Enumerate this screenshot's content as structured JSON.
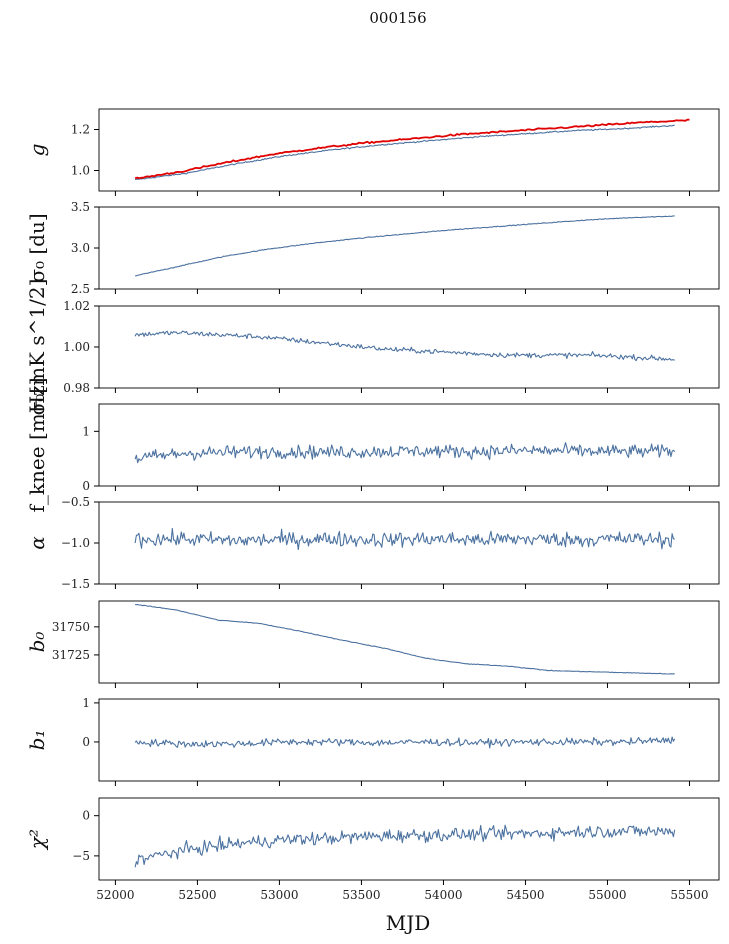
{
  "title": "000156",
  "chart_data": {
    "type": "line",
    "title": "000156",
    "xlabel": "MJD",
    "xlim": [
      51900,
      55680
    ],
    "xticks": [
      52000,
      52500,
      53000,
      53500,
      54000,
      54500,
      55000,
      55500
    ],
    "x_range": [
      52120,
      55410
    ],
    "colors": {
      "series": "#4c72a0",
      "overlay": "#e00000"
    },
    "panels": [
      {
        "ylabel": "g",
        "ylim": [
          0.9,
          1.3
        ],
        "yticks": [
          1.0,
          1.2
        ],
        "series": [
          {
            "kind": "trend",
            "values": [
              0.955,
              0.985,
              1.03,
              1.07,
              1.1,
              1.125,
              1.145,
              1.165,
              1.18,
              1.195,
              1.205,
              1.22
            ],
            "noise": 0.003
          },
          {
            "kind": "overlay",
            "values": [
              0.96,
              0.995,
              1.04,
              1.08,
              1.11,
              1.135,
              1.155,
              1.175,
              1.19,
              1.205,
              1.22,
              1.235,
              1.245
            ],
            "x_end": 55500,
            "noise": 0.004
          }
        ]
      },
      {
        "ylabel": "σ₀ [du]",
        "ylim": [
          2.5,
          3.5
        ],
        "yticks": [
          2.5,
          3.0,
          3.5
        ],
        "series": [
          {
            "kind": "trend",
            "values": [
              2.66,
              2.78,
              2.9,
              2.99,
              3.06,
              3.12,
              3.17,
              3.22,
              3.26,
              3.3,
              3.34,
              3.37,
              3.39
            ],
            "noise": 0.005
          }
        ]
      },
      {
        "ylabel": "σ₀[mK s^1/2]",
        "ylim": [
          0.98,
          1.02
        ],
        "yticks": [
          0.98,
          1.0,
          1.02
        ],
        "series": [
          {
            "kind": "trend",
            "values": [
              1.006,
              1.007,
              1.006,
              1.005,
              1.003,
              1.001,
              0.999,
              0.998,
              0.997,
              0.996,
              0.996,
              0.996,
              0.995,
              0.994
            ],
            "noise": 0.0012
          }
        ]
      },
      {
        "ylabel": "f_knee [mHz]",
        "ylim": [
          0,
          1.5
        ],
        "yticks": [
          0,
          1
        ],
        "series": [
          {
            "kind": "trend",
            "values": [
              0.5,
              0.6,
              0.62,
              0.63,
              0.62,
              0.63,
              0.64,
              0.63,
              0.65,
              0.64,
              0.63,
              0.64
            ],
            "noise": 0.12
          }
        ]
      },
      {
        "ylabel": "α",
        "ylim": [
          -1.5,
          -0.5
        ],
        "yticks": [
          -1.5,
          -1.0,
          -0.5
        ],
        "series": [
          {
            "kind": "trend",
            "values": [
              -0.95,
              -0.95,
              -0.97,
              -0.96,
              -0.95,
              -0.96,
              -0.95,
              -0.96,
              -0.95,
              -0.96,
              -0.95,
              -0.96
            ],
            "noise": 0.09
          }
        ]
      },
      {
        "ylabel": "b₀",
        "ylim": [
          31700,
          31773
        ],
        "yticks": [
          31725,
          31750
        ],
        "series": [
          {
            "kind": "trend",
            "values": [
              31770,
              31765,
              31756,
              31753,
              31746,
              31738,
              31731,
              31722,
              31717,
              31715,
              31711,
              31710,
              31709,
              31708
            ],
            "noise": 0.3
          }
        ]
      },
      {
        "ylabel": "b₁",
        "ylim": [
          -1.0,
          1.1
        ],
        "yticks": [
          0,
          1
        ],
        "series": [
          {
            "kind": "trend",
            "values": [
              0,
              -0.05,
              -0.05,
              0,
              0,
              -0.02,
              0,
              -0.02,
              0,
              0,
              0,
              0.05
            ],
            "noise": 0.09
          }
        ]
      },
      {
        "ylabel": "χ²",
        "ylim": [
          -8,
          2.2
        ],
        "yticks": [
          -5,
          0
        ],
        "series": [
          {
            "kind": "trend",
            "values": [
              -5.5,
              -4.3,
              -3.5,
              -3,
              -2.8,
              -2.5,
              -2.4,
              -2.3,
              -2.2,
              -2,
              -1.9,
              -2
            ],
            "noise": 0.8
          }
        ]
      }
    ]
  }
}
